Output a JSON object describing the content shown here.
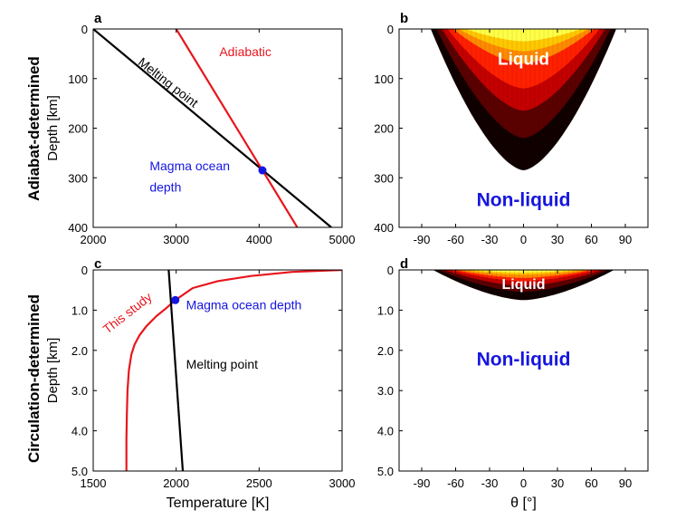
{
  "figure": {
    "row_labels": [
      "Adiabat-determined",
      "Circulation-determined"
    ]
  },
  "chart_data": [
    {
      "panel": "a",
      "type": "line",
      "xlabel": "",
      "ylabel": "Depth [km]",
      "xlim": [
        2000,
        5000
      ],
      "ylim": [
        0,
        400
      ],
      "y_inverted": true,
      "xticks": [
        2000,
        3000,
        4000,
        5000
      ],
      "xtick_labels": [
        "2000",
        "3000",
        "4000",
        "5000"
      ],
      "yticks": [
        0,
        100,
        200,
        300,
        400
      ],
      "ytick_labels": [
        "0",
        "100",
        "200",
        "300",
        "400"
      ],
      "series": [
        {
          "name": "Melting point",
          "color": "#000000",
          "x": [
            2000,
            4870
          ],
          "y": [
            0,
            400
          ]
        },
        {
          "name": "Adiabatic",
          "color": "#e8161c",
          "x": [
            3000,
            4460
          ],
          "y": [
            0,
            400
          ]
        }
      ],
      "points": [
        {
          "name": "Magma ocean depth",
          "color": "#1515e0",
          "x": 4040,
          "y": 285
        }
      ],
      "annotations": {
        "melting_point": "Melting point",
        "adiabatic": "Adiabatic",
        "magma_line1": "Magma ocean",
        "magma_line2": "depth"
      }
    },
    {
      "panel": "b",
      "type": "heatmap",
      "xlabel": "",
      "ylabel": "",
      "xlim": [
        -110,
        110
      ],
      "ylim": [
        0,
        400
      ],
      "y_inverted": true,
      "xticks": [
        -90,
        -60,
        -30,
        0,
        30,
        60,
        90
      ],
      "xtick_labels": [
        "-90",
        "-60",
        "-30",
        "0",
        "30",
        "60",
        "90"
      ],
      "yticks": [
        0,
        100,
        200,
        300,
        400
      ],
      "ytick_labels": [
        "0",
        "100",
        "200",
        "300",
        "400"
      ],
      "region_edge_deg": 82,
      "contour_depths_km": [
        285,
        220,
        165,
        120,
        70,
        45
      ],
      "contour_colors": [
        "#100000",
        "#5a0000",
        "#c40000",
        "#ff2000",
        "#ff8a00",
        "#ffc800",
        "#ffff48"
      ],
      "labels": {
        "liquid": "Liquid",
        "non_liquid": "Non-liquid"
      },
      "label_colors": {
        "liquid": "#ffffff",
        "non_liquid": "#1515e0"
      }
    },
    {
      "panel": "c",
      "type": "line",
      "xlabel": "Temperature [K]",
      "ylabel": "Depth [km]",
      "xlim": [
        1500,
        3000
      ],
      "ylim": [
        0,
        5
      ],
      "y_inverted": true,
      "xticks": [
        1500,
        2000,
        2500,
        3000
      ],
      "xtick_labels": [
        "1500",
        "2000",
        "2500",
        "3000"
      ],
      "yticks": [
        0,
        1,
        2,
        3,
        4,
        5
      ],
      "ytick_labels": [
        "0",
        "1.0",
        "2.0",
        "3.0",
        "4.0",
        "5.0"
      ],
      "series": [
        {
          "name": "This study",
          "color": "#e8161c",
          "x": [
            3000,
            2700,
            2450,
            2250,
            2100,
            1995,
            1940,
            1880,
            1820,
            1780,
            1750,
            1730,
            1715,
            1707,
            1703,
            1700,
            1700
          ],
          "y": [
            0,
            0.05,
            0.15,
            0.28,
            0.45,
            0.75,
            0.95,
            1.15,
            1.4,
            1.62,
            1.85,
            2.1,
            2.5,
            3.0,
            3.6,
            4.2,
            5.0
          ]
        },
        {
          "name": "Melting point",
          "color": "#000000",
          "x": [
            1955,
            2040
          ],
          "y": [
            0,
            5
          ]
        }
      ],
      "points": [
        {
          "name": "Magma ocean depth",
          "color": "#1515e0",
          "x": 1995,
          "y": 0.75
        }
      ],
      "annotations": {
        "this_study": "This study",
        "magma": "Magma ocean depth",
        "melting_point": "Melting point"
      }
    },
    {
      "panel": "d",
      "type": "heatmap",
      "xlabel": "θ [°]",
      "ylabel": "",
      "xlim": [
        -110,
        110
      ],
      "ylim": [
        0,
        5
      ],
      "y_inverted": true,
      "xticks": [
        -90,
        -60,
        -30,
        0,
        30,
        60,
        90
      ],
      "xtick_labels": [
        "-90",
        "-60",
        "-30",
        "0",
        "30",
        "60",
        "90"
      ],
      "yticks": [
        0,
        1,
        2,
        3,
        4,
        5
      ],
      "ytick_labels": [
        "0",
        "1.0",
        "2.0",
        "3.0",
        "4.0",
        "5.0"
      ],
      "region_edge_deg": 80,
      "contour_depths_km": [
        0.75,
        0.55,
        0.4,
        0.28,
        0.2,
        0.12
      ],
      "contour_colors": [
        "#100000",
        "#5a0000",
        "#c40000",
        "#ff2000",
        "#ff8a00",
        "#ffc800",
        "#ffff48"
      ],
      "labels": {
        "liquid": "Liquid",
        "non_liquid": "Non-liquid"
      },
      "label_colors": {
        "liquid": "#ffffff",
        "non_liquid": "#1515e0"
      }
    }
  ]
}
